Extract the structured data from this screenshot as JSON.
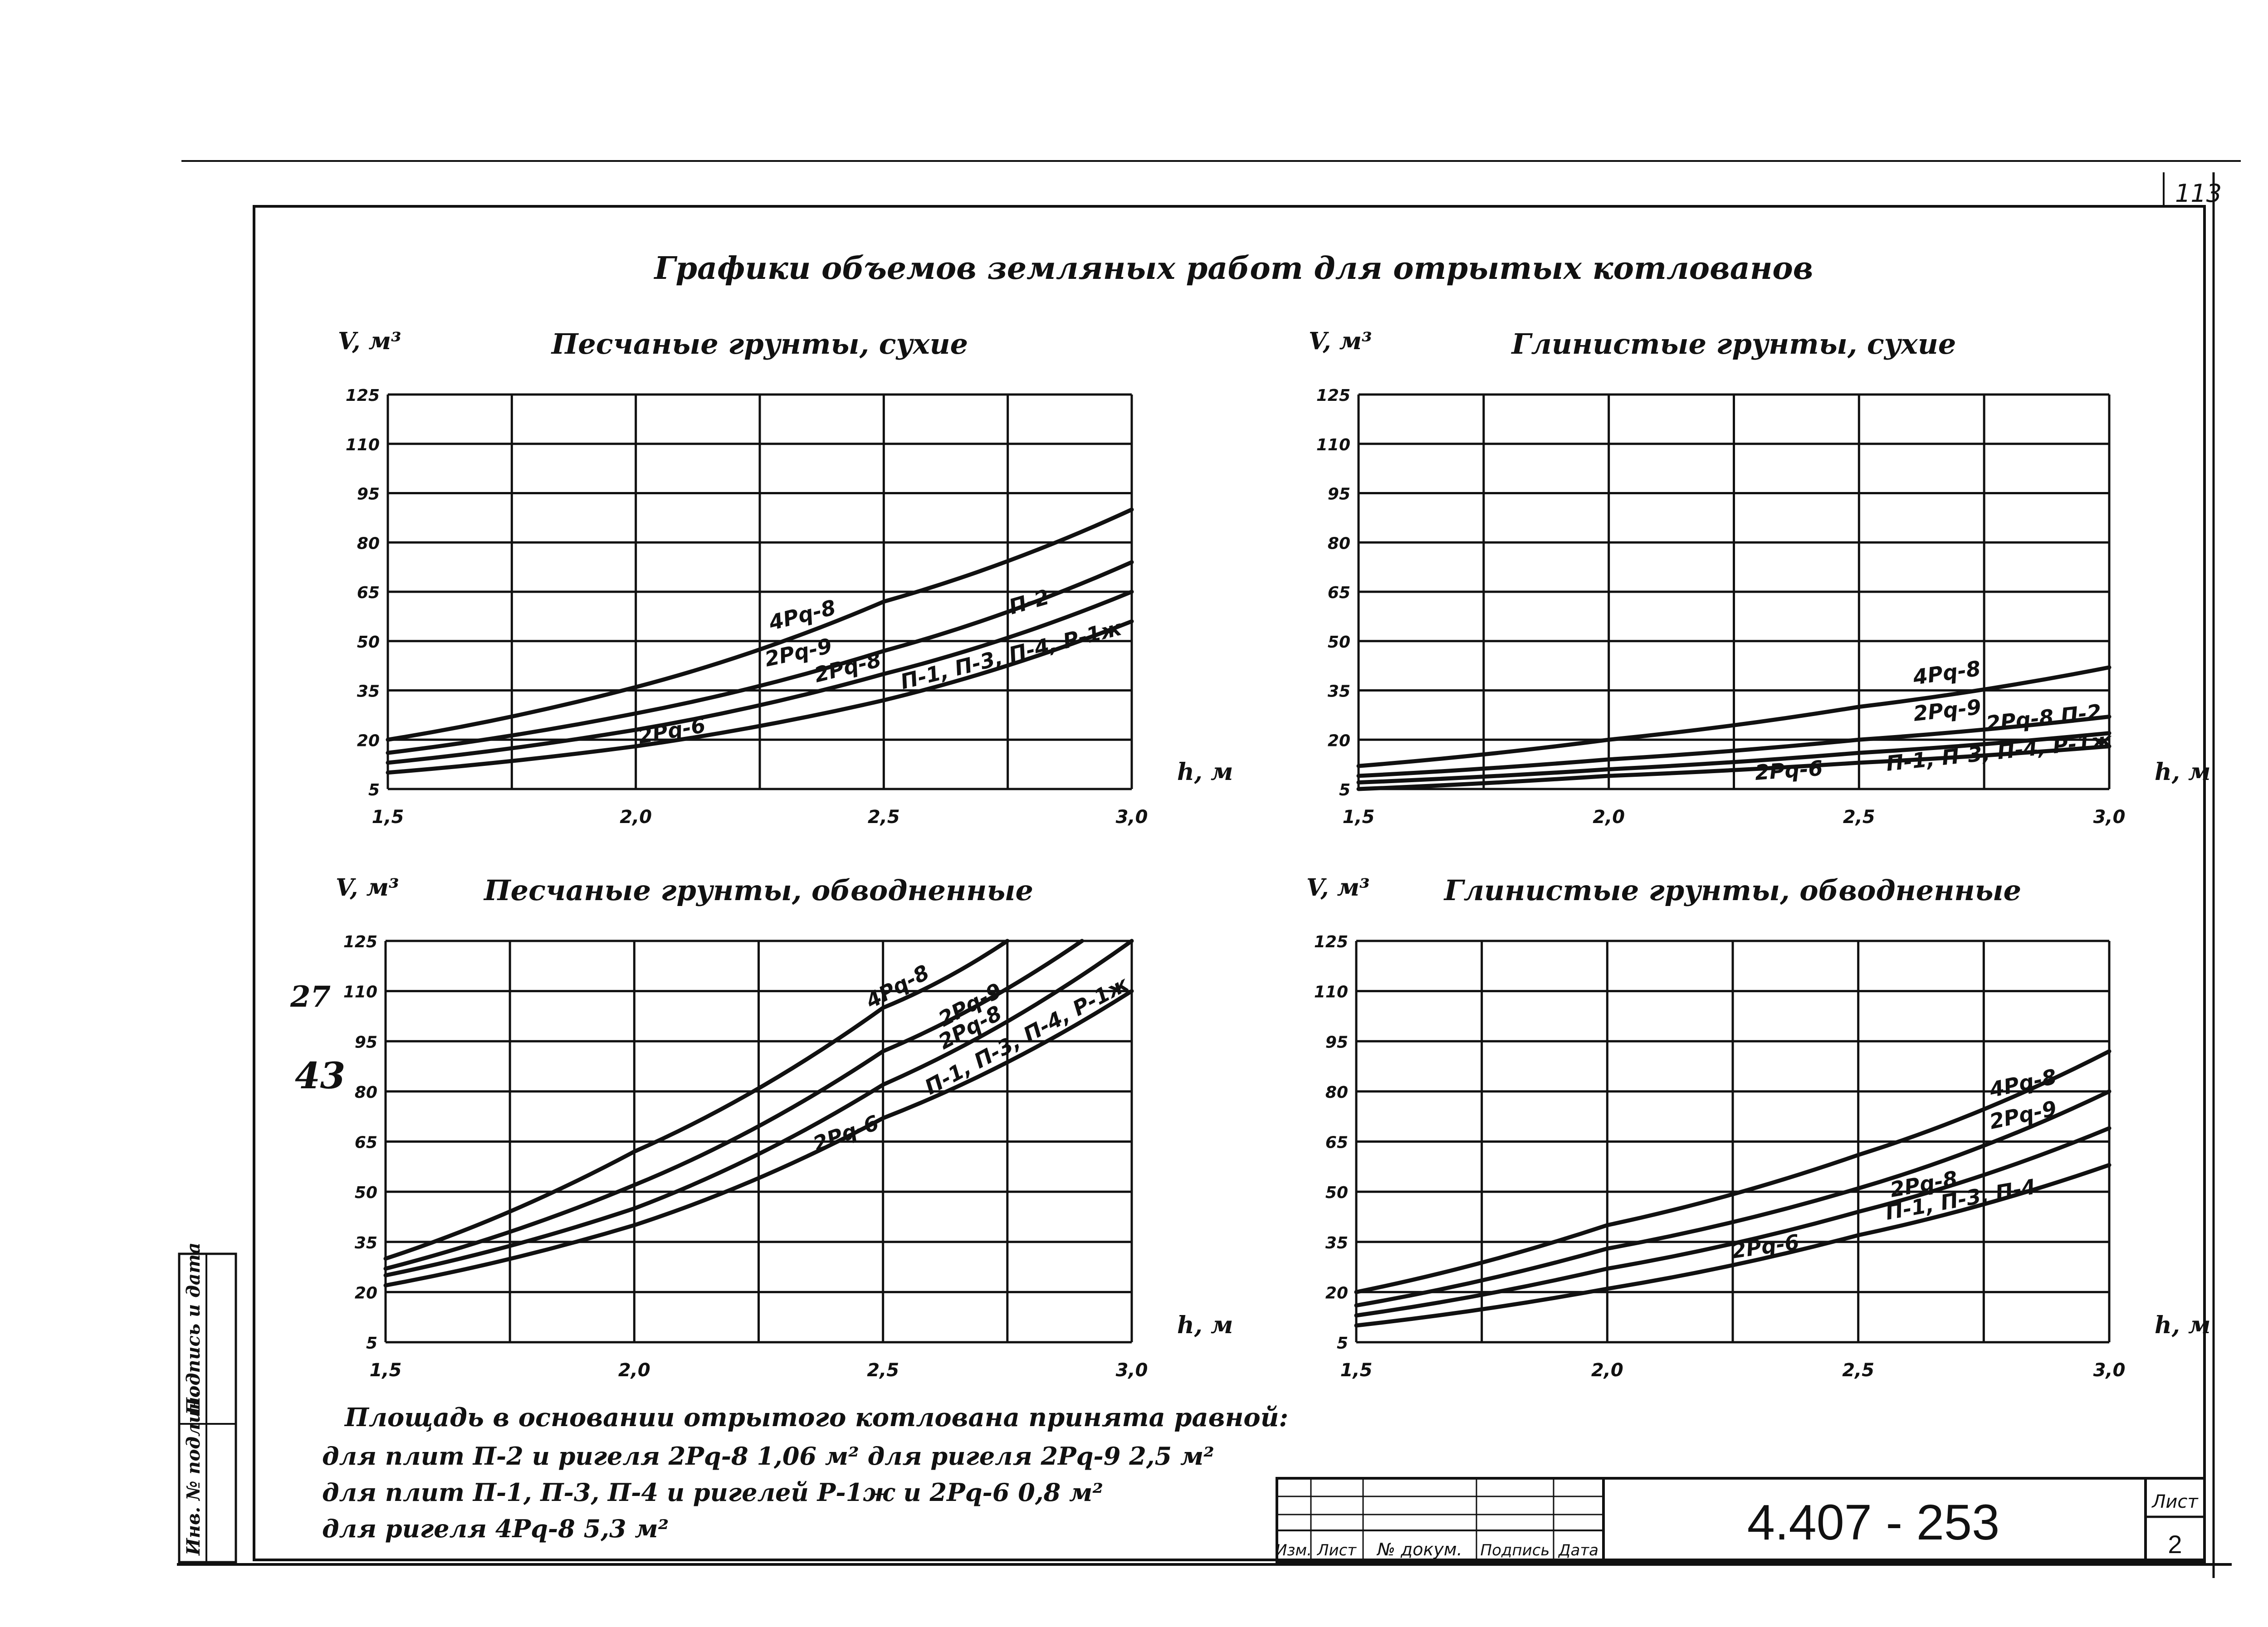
{
  "page": {
    "sheet_number": "113",
    "main_title": "Графики объемов земляных работ для отрытых котлованов"
  },
  "note": {
    "line1": "Площадь в основании отрытого котлована принята равной:",
    "line2": "для плит П-2 и ригеля 2Рq-8 1,06 м²  для ригеля 2Рq-9 2,5 м²",
    "line3": "для плит П-1, П-3, П-4 и ригелей Р-1ж и 2Рq-6 0,8 м²",
    "line4": "для ригеля 4Рq-8 5,3 м²"
  },
  "margin_stamp": {
    "col1": "Инв. № подлин.",
    "col2": "Подпись и дата"
  },
  "title_block": {
    "code": "4.407 - 253",
    "sheet_label": "Лист",
    "sheet_value": "2",
    "headers": [
      "Изм.",
      "Лист",
      "№ докум.",
      "Подпись",
      "Дата"
    ]
  },
  "annotations": {
    "a1": "27",
    "a2": "43"
  },
  "chart_data": [
    {
      "type": "line",
      "title": "Песчаные грунты, сухие",
      "xlabel": "h, м",
      "ylabel": "V, м³",
      "xlim": [
        1.5,
        3.0
      ],
      "ylim": [
        5,
        125
      ],
      "x_ticks": [
        "1,5",
        "2,0",
        "2,5",
        "3,0"
      ],
      "y_ticks": [
        "5",
        "20",
        "35",
        "50",
        "65",
        "80",
        "95",
        "110",
        "125"
      ],
      "grid": true,
      "series": [
        {
          "name": "4Рq-8",
          "x": [
            1.5,
            2.0,
            2.5,
            3.0
          ],
          "y": [
            20,
            36,
            62,
            90
          ]
        },
        {
          "name": "П-2",
          "x": [
            1.5,
            2.0,
            2.5,
            3.0
          ],
          "y": [
            16,
            28,
            47,
            74
          ]
        },
        {
          "name": "2Рq-9",
          "x": [
            1.5,
            2.0,
            2.5,
            3.0
          ],
          "y": [
            13,
            23,
            40,
            65
          ]
        },
        {
          "name": "П-1, П-3, П-4, Р-1ж",
          "x": [
            1.5,
            2.0,
            2.5,
            3.0
          ],
          "y": [
            10,
            18,
            32,
            56
          ]
        }
      ],
      "labels": [
        "4Рq-8",
        "2Рq-9",
        "2Рq-8",
        "2Рq-6",
        "П-2",
        "П-1, П-3, П-4, Р-1ж"
      ]
    },
    {
      "type": "line",
      "title": "Глинистые грунты, сухие",
      "xlabel": "h, м",
      "ylabel": "V, м³",
      "xlim": [
        1.5,
        3.0
      ],
      "ylim": [
        5,
        125
      ],
      "x_ticks": [
        "1,5",
        "2,0",
        "2,5",
        "3,0"
      ],
      "y_ticks": [
        "5",
        "20",
        "35",
        "50",
        "65",
        "80",
        "95",
        "110",
        "125"
      ],
      "grid": true,
      "series": [
        {
          "name": "4Рq-8",
          "x": [
            1.5,
            2.0,
            2.5,
            3.0
          ],
          "y": [
            12,
            20,
            30,
            42
          ]
        },
        {
          "name": "2Рq-9",
          "x": [
            1.5,
            2.0,
            2.5,
            3.0
          ],
          "y": [
            9,
            14,
            20,
            27
          ]
        },
        {
          "name": "2Рq-8",
          "x": [
            1.5,
            2.0,
            2.5,
            3.0
          ],
          "y": [
            7,
            11,
            16,
            22
          ]
        },
        {
          "name": "П-1, П-3, П-4, Р-1ж",
          "x": [
            1.5,
            2.0,
            2.5,
            3.0
          ],
          "y": [
            5,
            9,
            13,
            18
          ]
        }
      ],
      "labels": [
        "4Рq-8",
        "2Рq-9",
        "2Рq-8 П-2",
        "2Рq-6",
        "П-1, П-3, П-4, Р-1ж"
      ]
    },
    {
      "type": "line",
      "title": "Песчаные грунты, обводненные",
      "xlabel": "h, м",
      "ylabel": "V, м³",
      "xlim": [
        1.5,
        3.0
      ],
      "ylim": [
        5,
        125
      ],
      "x_ticks": [
        "1,5",
        "2,0",
        "2,5",
        "3,0"
      ],
      "y_ticks": [
        "5",
        "20",
        "35",
        "50",
        "65",
        "80",
        "95",
        "110",
        "125"
      ],
      "grid": true,
      "series": [
        {
          "name": "4Рq-8",
          "x": [
            1.5,
            2.0,
            2.5,
            2.75
          ],
          "y": [
            30,
            62,
            105,
            125
          ]
        },
        {
          "name": "2Рq-9",
          "x": [
            1.5,
            2.0,
            2.5,
            2.9
          ],
          "y": [
            27,
            52,
            92,
            125
          ]
        },
        {
          "name": "2Рq-8",
          "x": [
            1.5,
            2.0,
            2.5,
            3.0
          ],
          "y": [
            25,
            45,
            82,
            125
          ]
        },
        {
          "name": "П-1, П-3, П-4, Р-1ж",
          "x": [
            1.5,
            2.0,
            2.5,
            3.0
          ],
          "y": [
            22,
            40,
            72,
            110
          ]
        }
      ],
      "labels": [
        "4Рq-8",
        "2Рq-9",
        "2Рq-8",
        "2Рq-6",
        "П-1, П-3, П-4, Р-1ж"
      ]
    },
    {
      "type": "line",
      "title": "Глинистые грунты, обводненные",
      "xlabel": "h, м",
      "ylabel": "V, м³",
      "xlim": [
        1.5,
        3.0
      ],
      "ylim": [
        5,
        125
      ],
      "x_ticks": [
        "1,5",
        "2,0",
        "2,5",
        "3,0"
      ],
      "y_ticks": [
        "5",
        "20",
        "35",
        "50",
        "65",
        "80",
        "95",
        "110",
        "125"
      ],
      "grid": true,
      "series": [
        {
          "name": "4Рq-8",
          "x": [
            1.5,
            2.0,
            2.5,
            3.0
          ],
          "y": [
            20,
            40,
            61,
            92
          ]
        },
        {
          "name": "2Рq-9",
          "x": [
            1.5,
            2.0,
            2.5,
            3.0
          ],
          "y": [
            16,
            33,
            51,
            80
          ]
        },
        {
          "name": "2Рq-8",
          "x": [
            1.5,
            2.0,
            2.5,
            3.0
          ],
          "y": [
            13,
            27,
            44,
            69
          ]
        },
        {
          "name": "П-1, П-3, П-4",
          "x": [
            1.5,
            2.0,
            2.5,
            3.0
          ],
          "y": [
            10,
            21,
            37,
            58
          ]
        }
      ],
      "labels": [
        "4Рq-8",
        "2Рq-9",
        "2Рq-8",
        "2Рq-6",
        "П-1, П-3, П-4"
      ]
    }
  ]
}
